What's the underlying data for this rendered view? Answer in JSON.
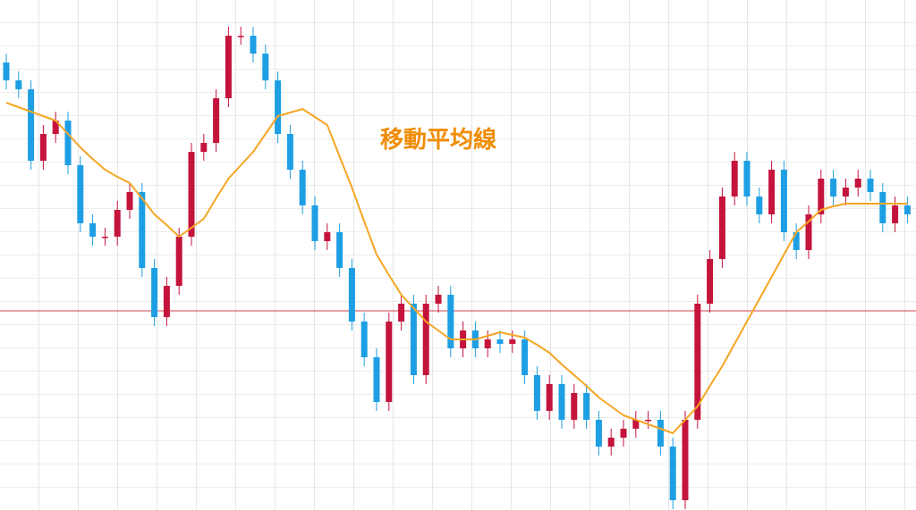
{
  "chart_data": {
    "type": "candlestick",
    "annotation": "移動平均線",
    "ylim": [
      0,
      571
    ],
    "grid": true,
    "up_color": "#c4143c",
    "down_color": "#1e9fe4",
    "reference_line": {
      "value": 223,
      "color": "#d0404a"
    },
    "open": [
      501,
      481,
      471,
      391,
      421,
      436,
      386,
      321,
      306,
      306,
      336,
      356,
      271,
      216,
      251,
      306,
      401,
      411,
      461,
      531,
      531,
      511,
      481,
      421,
      381,
      341,
      301,
      311,
      271,
      211,
      171,
      121,
      211,
      231,
      151,
      231,
      241,
      181,
      201,
      181,
      191,
      186,
      191,
      151,
      111,
      141,
      101,
      131,
      101,
      71,
      81,
      91,
      101,
      101,
      71,
      11,
      101,
      231,
      281,
      351,
      391,
      351,
      331,
      381,
      311,
      291,
      331,
      371,
      351,
      361,
      371,
      356,
      321,
      341
    ],
    "high": [
      511,
      491,
      481,
      431,
      446,
      446,
      396,
      331,
      316,
      346,
      366,
      366,
      281,
      261,
      316,
      411,
      421,
      471,
      541,
      541,
      541,
      521,
      491,
      431,
      391,
      351,
      321,
      321,
      281,
      221,
      181,
      221,
      241,
      241,
      241,
      251,
      251,
      211,
      211,
      201,
      201,
      201,
      201,
      161,
      151,
      151,
      141,
      141,
      111,
      91,
      101,
      111,
      111,
      111,
      81,
      111,
      241,
      291,
      361,
      401,
      401,
      361,
      391,
      391,
      321,
      341,
      381,
      381,
      371,
      381,
      381,
      366,
      351,
      351
    ],
    "low": [
      471,
      461,
      381,
      381,
      411,
      376,
      311,
      296,
      296,
      296,
      326,
      261,
      206,
      206,
      241,
      296,
      391,
      401,
      451,
      521,
      501,
      471,
      411,
      371,
      331,
      291,
      291,
      261,
      201,
      161,
      111,
      111,
      201,
      141,
      141,
      221,
      171,
      171,
      171,
      171,
      176,
      176,
      141,
      101,
      101,
      91,
      91,
      91,
      61,
      61,
      71,
      81,
      91,
      61,
      1,
      1,
      91,
      221,
      271,
      341,
      341,
      321,
      321,
      301,
      281,
      281,
      321,
      341,
      341,
      351,
      346,
      311,
      311,
      321
    ],
    "close": [
      481,
      471,
      391,
      421,
      436,
      386,
      321,
      306,
      306,
      336,
      356,
      271,
      216,
      251,
      306,
      401,
      411,
      461,
      531,
      531,
      511,
      481,
      421,
      381,
      341,
      301,
      311,
      271,
      211,
      171,
      121,
      211,
      231,
      151,
      231,
      241,
      181,
      201,
      181,
      191,
      186,
      191,
      151,
      111,
      141,
      101,
      131,
      101,
      71,
      81,
      91,
      101,
      101,
      71,
      11,
      101,
      231,
      281,
      351,
      391,
      351,
      331,
      381,
      311,
      291,
      331,
      371,
      351,
      361,
      371,
      356,
      321,
      341,
      331
    ],
    "moving_average": {
      "color": "#f5a623",
      "values": [
        456,
        451,
        446,
        441,
        436,
        421,
        406,
        393,
        381,
        373,
        366,
        349,
        331,
        319,
        306,
        316,
        326,
        349,
        371,
        386,
        401,
        421,
        441,
        445,
        449,
        440,
        431,
        396,
        361,
        323,
        286,
        263,
        241,
        226,
        211,
        201,
        191,
        191,
        191,
        195,
        199,
        196,
        193,
        185,
        176,
        163,
        151,
        139,
        126,
        116,
        106,
        101,
        96,
        91,
        86,
        101,
        116,
        139,
        161,
        186,
        211,
        236,
        261,
        286,
        311,
        323,
        336,
        340,
        343,
        343,
        343,
        343,
        343,
        343
      ]
    }
  }
}
